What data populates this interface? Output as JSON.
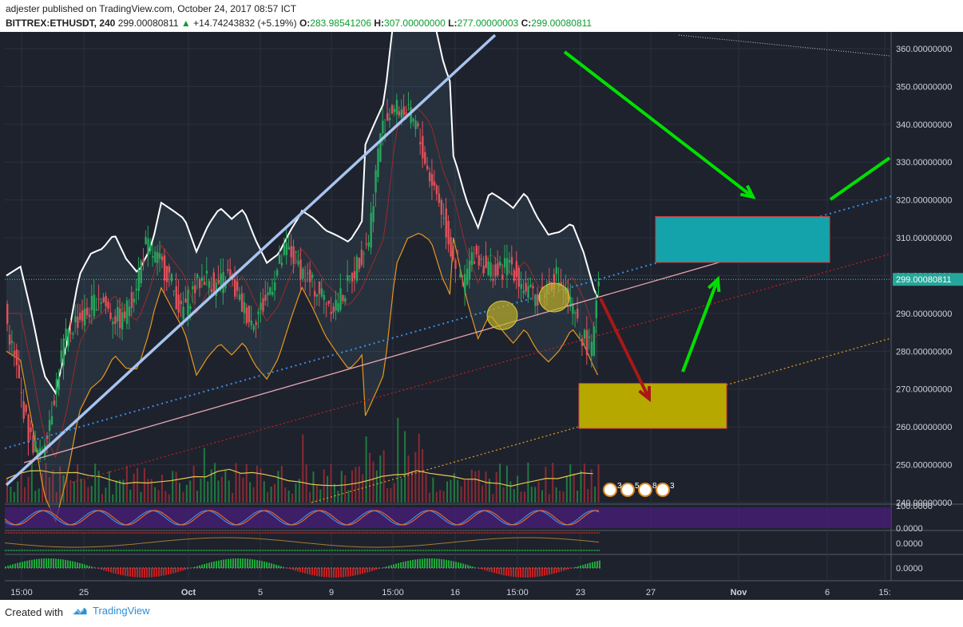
{
  "header": {
    "author": "adjester",
    "published_text": "published on TradingView.com, October 24, 2017 08:57 ICT",
    "symbol": "BITTREX:ETHUSDT, 240",
    "last": "299.00080811",
    "change": "+14.74243832 (+5.19%)",
    "o_label": "O:",
    "o_value": "283.98541206",
    "h_label": "H:",
    "h_value": "307.00000000",
    "l_label": "L:",
    "l_value": "277.00000003",
    "c_label": "C:",
    "c_value": "299.00080811"
  },
  "footer": {
    "created_with": "Created with",
    "brand": "TradingView"
  },
  "colors": {
    "background": "#1e222d",
    "grid": "#2b3040",
    "up": "#26a65b",
    "down": "#e0505a",
    "accent_green": "#00e000",
    "cyan_box": "#14a3aa",
    "yellow_box": "#b7a800",
    "purple_band": "#4a1e7a"
  },
  "chart_data": {
    "type": "candlestick",
    "symbol": "BITTREX:ETHUSDT",
    "interval": "240",
    "ylim": [
      240,
      364
    ],
    "yticks": [
      "360.00000000",
      "350.00000000",
      "340.00000000",
      "330.00000000",
      "320.00000000",
      "310.00000000",
      "300.00000000",
      "290.00000000",
      "280.00000000",
      "270.00000000",
      "260.00000000",
      "250.00000000",
      "240.00000000"
    ],
    "xticks": [
      "15:00",
      "25",
      "Oct",
      "5",
      "9",
      "15:00",
      "16",
      "15:00",
      "23",
      "27",
      "Nov",
      "6",
      "15:"
    ],
    "last_price_label": "299.00080811",
    "price_path_approx": [
      [
        0,
        290
      ],
      [
        10,
        275
      ],
      [
        20,
        258
      ],
      [
        30,
        252
      ],
      [
        40,
        265
      ],
      [
        50,
        282
      ],
      [
        60,
        288
      ],
      [
        70,
        290
      ],
      [
        80,
        295
      ],
      [
        90,
        290
      ],
      [
        100,
        288
      ],
      [
        110,
        296
      ],
      [
        120,
        308
      ],
      [
        130,
        304
      ],
      [
        140,
        300
      ],
      [
        150,
        290
      ],
      [
        160,
        296
      ],
      [
        170,
        300
      ],
      [
        180,
        297
      ],
      [
        190,
        300
      ],
      [
        200,
        293
      ],
      [
        210,
        288
      ],
      [
        220,
        292
      ],
      [
        230,
        300
      ],
      [
        240,
        307
      ],
      [
        250,
        303
      ],
      [
        260,
        298
      ],
      [
        270,
        295
      ],
      [
        280,
        292
      ],
      [
        290,
        296
      ],
      [
        300,
        303
      ],
      [
        310,
        310
      ],
      [
        320,
        338
      ],
      [
        330,
        344
      ],
      [
        340,
        344
      ],
      [
        350,
        340
      ],
      [
        360,
        328
      ],
      [
        370,
        320
      ],
      [
        380,
        307
      ],
      [
        390,
        298
      ],
      [
        400,
        306
      ],
      [
        410,
        303
      ],
      [
        420,
        300
      ],
      [
        430,
        304
      ],
      [
        440,
        298
      ],
      [
        450,
        294
      ],
      [
        460,
        296
      ],
      [
        470,
        300
      ],
      [
        480,
        294
      ],
      [
        490,
        285
      ],
      [
        500,
        280
      ],
      [
        505,
        299
      ]
    ],
    "oscillators": [
      {
        "name": "panel-1",
        "value_labels": [
          "100.0000",
          "0.0000"
        ]
      },
      {
        "name": "panel-2",
        "value_labels": [
          "0.0000"
        ]
      },
      {
        "name": "panel-3",
        "value_labels": [
          "0.0000"
        ]
      }
    ],
    "event_badges": [
      "3",
      "5",
      "8",
      "3"
    ]
  }
}
